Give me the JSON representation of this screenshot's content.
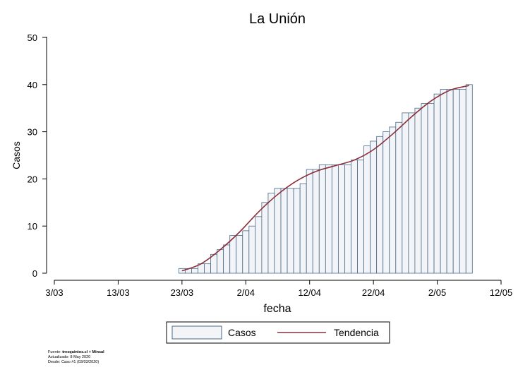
{
  "chart_data": {
    "type": "bar",
    "title": "La Unión",
    "xlabel": "fecha",
    "ylabel": "Casos",
    "ylim": [
      0,
      50
    ],
    "yticks": [
      0,
      10,
      20,
      30,
      40,
      50
    ],
    "xlim": [
      "2020-03-03",
      "2020-05-12"
    ],
    "xticks": [
      {
        "date": "2020-03-03",
        "label": "3/03"
      },
      {
        "date": "2020-03-13",
        "label": "13/03"
      },
      {
        "date": "2020-03-23",
        "label": "23/03"
      },
      {
        "date": "2020-04-02",
        "label": "2/04"
      },
      {
        "date": "2020-04-12",
        "label": "12/04"
      },
      {
        "date": "2020-04-22",
        "label": "22/04"
      },
      {
        "date": "2020-05-02",
        "label": "2/05"
      },
      {
        "date": "2020-05-12",
        "label": "12/05"
      }
    ],
    "grid": false,
    "legend_position": "bottom",
    "series": [
      {
        "name": "Casos",
        "type": "bar",
        "color": "#f2f4f7",
        "edge_color": "#4a6a8a",
        "dates": [
          "2020-03-23",
          "2020-03-24",
          "2020-03-25",
          "2020-03-26",
          "2020-03-27",
          "2020-03-28",
          "2020-03-29",
          "2020-03-30",
          "2020-03-31",
          "2020-04-01",
          "2020-04-02",
          "2020-04-03",
          "2020-04-04",
          "2020-04-05",
          "2020-04-06",
          "2020-04-07",
          "2020-04-08",
          "2020-04-09",
          "2020-04-10",
          "2020-04-11",
          "2020-04-12",
          "2020-04-13",
          "2020-04-14",
          "2020-04-15",
          "2020-04-16",
          "2020-04-17",
          "2020-04-18",
          "2020-04-19",
          "2020-04-20",
          "2020-04-21",
          "2020-04-22",
          "2020-04-23",
          "2020-04-24",
          "2020-04-25",
          "2020-04-26",
          "2020-04-27",
          "2020-04-28",
          "2020-04-29",
          "2020-04-30",
          "2020-05-01",
          "2020-05-02",
          "2020-05-03",
          "2020-05-04",
          "2020-05-05",
          "2020-05-06",
          "2020-05-07"
        ],
        "values": [
          1,
          1,
          1,
          2,
          2,
          4,
          5,
          6,
          8,
          8,
          9,
          10,
          12,
          15,
          17,
          18,
          18,
          18,
          18,
          19,
          22,
          22,
          23,
          23,
          23,
          23,
          23,
          24,
          24,
          27,
          28,
          29,
          30,
          31,
          32,
          34,
          34,
          35,
          36,
          36,
          38,
          39,
          39,
          39,
          39,
          40
        ]
      },
      {
        "name": "Tendencia",
        "type": "line",
        "color": "#8b2e3a",
        "dates": [
          "2020-03-23",
          "2020-03-26",
          "2020-03-29",
          "2020-04-01",
          "2020-04-04",
          "2020-04-07",
          "2020-04-10",
          "2020-04-13",
          "2020-04-16",
          "2020-04-19",
          "2020-04-22",
          "2020-04-25",
          "2020-04-28",
          "2020-05-01",
          "2020-05-04",
          "2020-05-07"
        ],
        "values": [
          0.5,
          2.0,
          5.0,
          8.7,
          13.0,
          16.7,
          19.6,
          21.6,
          22.8,
          24.0,
          26.2,
          29.5,
          33.2,
          36.5,
          38.8,
          39.8
        ]
      }
    ]
  },
  "source": {
    "prefix": "Fuente: ",
    "name": "tresquintos.cl + Minsal",
    "updated": "Actualizado: 8 May 2020",
    "since": "Desde: Caso #1  (03/03/2020)"
  }
}
